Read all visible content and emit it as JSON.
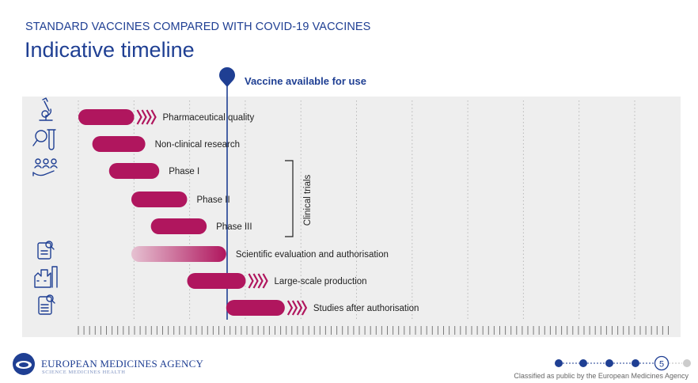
{
  "header": {
    "subtitle": "STANDARD VACCINES COMPARED WITH COVID-19 VACCINES",
    "title": "Indicative timeline"
  },
  "marker": {
    "label": "Vaccine available for use"
  },
  "bracket": {
    "label": "Clinical trials"
  },
  "stages": [
    {
      "label": "Pharmaceutical quality",
      "icon": "microscope-icon",
      "start": 0.0,
      "end": 1.0,
      "arrows": true,
      "faded": false
    },
    {
      "label": "Non-clinical research",
      "icon": "test-tubes-icon",
      "start": 0.25,
      "end": 1.2,
      "arrows": false,
      "faded": false
    },
    {
      "label": "Phase I",
      "icon": "people-icon",
      "start": 0.55,
      "end": 1.45,
      "arrows": false,
      "faded": false
    },
    {
      "label": "Phase II",
      "icon": "",
      "start": 0.95,
      "end": 1.95,
      "arrows": false,
      "faded": false
    },
    {
      "label": "Phase III",
      "icon": "",
      "start": 1.3,
      "end": 2.3,
      "arrows": false,
      "faded": false
    },
    {
      "label": "Scientific evaluation and authorisation",
      "icon": "clipboard-search-icon",
      "start": 0.95,
      "end": 2.65,
      "arrows": false,
      "faded": true
    },
    {
      "label": "Large-scale production",
      "icon": "factory-icon",
      "start": 1.95,
      "end": 3.0,
      "arrows": true,
      "faded": false
    },
    {
      "label": "Studies after authorisation",
      "icon": "document-search-icon",
      "start": 2.65,
      "end": 3.7,
      "arrows": true,
      "faded": false
    }
  ],
  "colors": {
    "bar": "#b0165e",
    "bar_faded": "#e6c2d2",
    "accent": "#1f3f93",
    "panel": "#eeeeee"
  },
  "footer": {
    "org": "EUROPEAN MEDICINES AGENCY",
    "tagline": "SCIENCE   MEDICINES   HEALTH",
    "classification": "Classified as public by the European Medicines Agency",
    "page": "5"
  }
}
